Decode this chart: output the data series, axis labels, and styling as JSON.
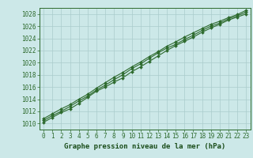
{
  "hours": [
    0,
    1,
    2,
    3,
    4,
    5,
    6,
    7,
    8,
    9,
    10,
    11,
    12,
    13,
    14,
    15,
    16,
    17,
    18,
    19,
    20,
    21,
    22,
    23
  ],
  "line1": [
    1010.2,
    1011.0,
    1011.8,
    1012.4,
    1013.3,
    1014.3,
    1015.3,
    1016.0,
    1016.8,
    1017.5,
    1018.5,
    1019.3,
    1020.2,
    1021.1,
    1022.0,
    1022.8,
    1023.5,
    1024.2,
    1025.0,
    1025.7,
    1026.3,
    1027.0,
    1027.5,
    1028.0
  ],
  "line2": [
    1010.5,
    1011.3,
    1012.0,
    1012.8,
    1013.7,
    1014.5,
    1015.5,
    1016.3,
    1017.2,
    1018.0,
    1019.0,
    1019.8,
    1020.7,
    1021.6,
    1022.4,
    1023.0,
    1023.8,
    1024.5,
    1025.3,
    1026.0,
    1026.5,
    1027.2,
    1027.7,
    1028.3
  ],
  "line3": [
    1010.8,
    1011.6,
    1012.4,
    1013.1,
    1014.0,
    1014.8,
    1015.8,
    1016.7,
    1017.6,
    1018.4,
    1019.3,
    1020.1,
    1021.0,
    1021.8,
    1022.7,
    1023.4,
    1024.2,
    1024.9,
    1025.6,
    1026.3,
    1026.8,
    1027.4,
    1027.9,
    1028.6
  ],
  "line_color": "#2d6a2d",
  "marker": "D",
  "marker_size": 2.0,
  "bg_color": "#cce8e8",
  "grid_color": "#aacccc",
  "xlabel": "Graphe pression niveau de la mer (hPa)",
  "xlabel_color": "#1a4d1a",
  "ylabel_ticks": [
    1010,
    1012,
    1014,
    1016,
    1018,
    1020,
    1022,
    1024,
    1026,
    1028
  ],
  "ylim": [
    1009.0,
    1029.0
  ],
  "xlim": [
    -0.5,
    23.5
  ],
  "xticks": [
    0,
    1,
    2,
    3,
    4,
    5,
    6,
    7,
    8,
    9,
    10,
    11,
    12,
    13,
    14,
    15,
    16,
    17,
    18,
    19,
    20,
    21,
    22,
    23
  ],
  "tick_fontsize": 5.5,
  "xlabel_fontsize": 6.5,
  "linewidth": 0.8
}
